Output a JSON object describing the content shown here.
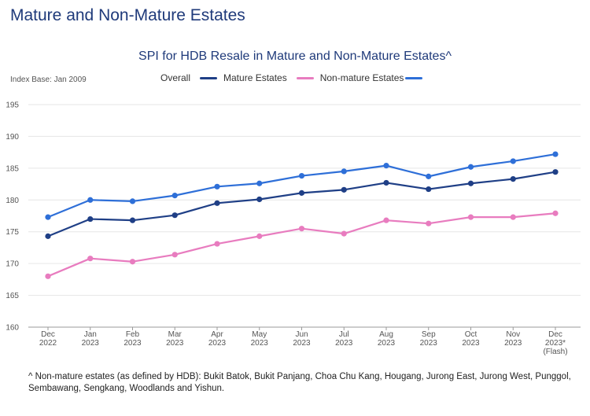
{
  "page_title": "Mature and Non-Mature Estates",
  "index_base": "Index Base: Jan 2009",
  "legend": {
    "overall": "Overall",
    "mature": "Mature Estates",
    "non_mature": "Non-mature Estates"
  },
  "footnote": "^ Non-mature estates (as defined by HDB): Bukit Batok, Bukit Panjang, Choa Chu Kang, Hougang, Jurong East, Jurong West, Punggol, Sembawang, Sengkang, Woodlands and Yishun.",
  "colors": {
    "overall": "#2e6fd8",
    "mature": "#1f3f86",
    "non_mature": "#e87cbf",
    "grid": "#e6e6e6",
    "axis": "#999999"
  },
  "chart_data": {
    "type": "line",
    "title": "SPI for HDB Resale in Mature and Non-Mature Estates^",
    "xlabel": "",
    "ylabel": "",
    "ylim": [
      160,
      195
    ],
    "yticks": [
      160,
      165,
      170,
      175,
      180,
      185,
      190,
      195
    ],
    "categories": [
      [
        "Dec",
        "2022"
      ],
      [
        "Jan",
        "2023"
      ],
      [
        "Feb",
        "2023"
      ],
      [
        "Mar",
        "2023"
      ],
      [
        "Apr",
        "2023"
      ],
      [
        "May",
        "2023"
      ],
      [
        "Jun",
        "2023"
      ],
      [
        "Jul",
        "2023"
      ],
      [
        "Aug",
        "2023"
      ],
      [
        "Sep",
        "2023"
      ],
      [
        "Oct",
        "2023"
      ],
      [
        "Nov",
        "2023"
      ],
      [
        "Dec",
        "2023*",
        "(Flash)"
      ]
    ],
    "series": [
      {
        "name": "Overall",
        "key": "overall",
        "values": [
          177.3,
          180.0,
          179.8,
          180.7,
          182.1,
          182.6,
          183.8,
          184.5,
          185.4,
          183.7,
          185.2,
          186.1,
          187.2
        ]
      },
      {
        "name": "Mature Estates",
        "key": "mature",
        "values": [
          174.3,
          177.0,
          176.8,
          177.6,
          179.5,
          180.1,
          181.1,
          181.6,
          182.7,
          181.7,
          182.6,
          183.3,
          184.4
        ]
      },
      {
        "name": "Non-mature Estates",
        "key": "non_mature",
        "values": [
          168.0,
          170.8,
          170.3,
          171.4,
          173.1,
          174.3,
          175.5,
          174.7,
          176.8,
          176.3,
          177.3,
          177.3,
          177.9
        ]
      }
    ]
  }
}
